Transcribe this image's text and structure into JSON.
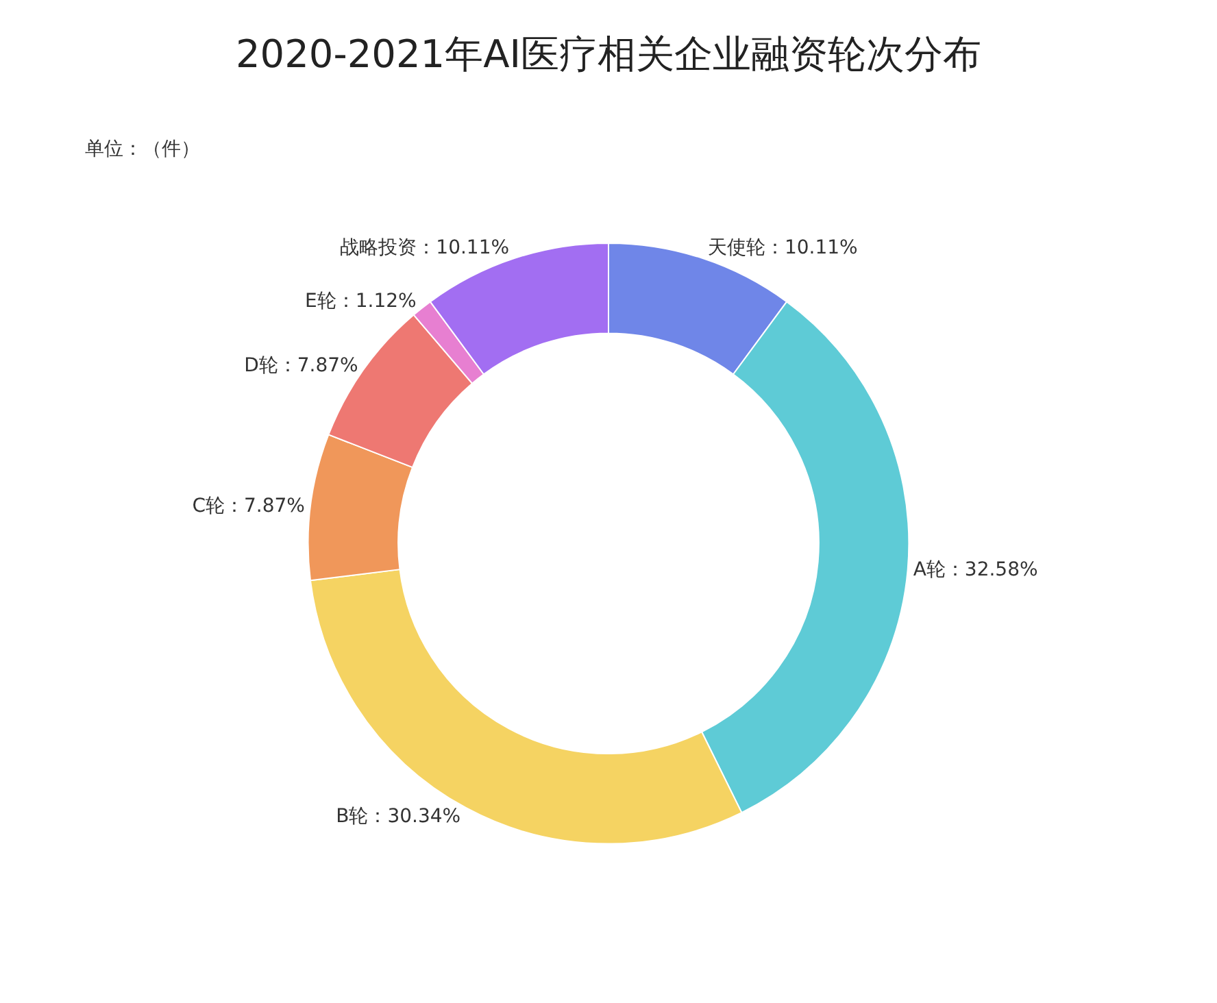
{
  "chart_data": {
    "type": "donut",
    "title": "2020-2021年AI医疗相关企业融资轮次分布",
    "subtitle": "单位：（件）",
    "categories": [
      "天使轮",
      "A轮",
      "B轮",
      "C轮",
      "D轮",
      "E轮",
      "战略投资"
    ],
    "values": [
      10.11,
      32.58,
      30.34,
      7.87,
      7.87,
      1.12,
      10.11
    ],
    "value_labels": [
      "10.11%",
      "32.58%",
      "30.34%",
      "7.87%",
      "7.87%",
      "1.12%",
      "10.11%"
    ],
    "colors": [
      "#6f86e8",
      "#5ecbd6",
      "#f5d362",
      "#f0975a",
      "#ee7872",
      "#e77fd1",
      "#a26ef2"
    ],
    "legend": false
  }
}
